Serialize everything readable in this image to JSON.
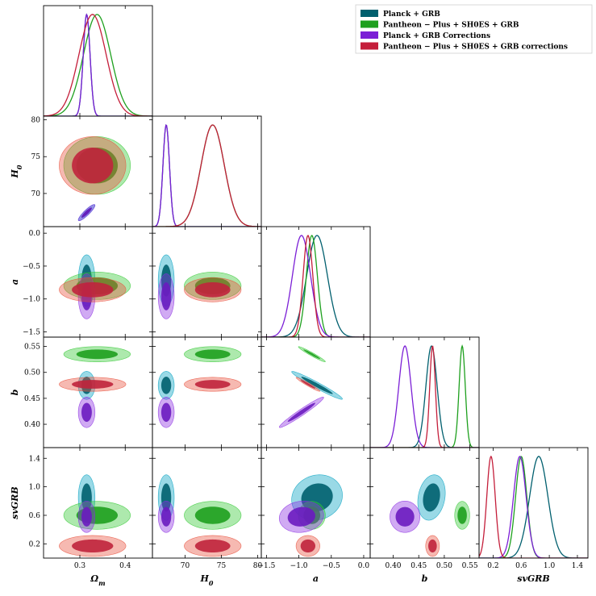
{
  "chart_data": {
    "type": "triangle-corner-plot",
    "title": "",
    "parameters": [
      {
        "key": "Om",
        "label": "Ωm",
        "range": [
          0.22,
          0.46
        ],
        "ticks": [
          0.3,
          0.4
        ],
        "ticklabels": [
          "0.3",
          "0.4"
        ]
      },
      {
        "key": "H0",
        "label": "H0",
        "range": [
          65.5,
          80.5
        ],
        "ticks": [
          70,
          75,
          80
        ],
        "ticklabels": [
          "70",
          "75",
          "80"
        ]
      },
      {
        "key": "a",
        "label": "a",
        "range": [
          -1.58,
          0.1
        ],
        "ticks": [
          -1.5,
          -1.0,
          -0.5,
          0.0
        ],
        "ticklabels": [
          "−1.5",
          "−1.0",
          "−0.5",
          "0.0"
        ]
      },
      {
        "key": "b",
        "label": "b",
        "range": [
          0.355,
          0.568
        ],
        "ticks": [
          0.4,
          0.45,
          0.5,
          0.55
        ],
        "ticklabels": [
          "0.40",
          "0.45",
          "0.50",
          "0.55"
        ]
      },
      {
        "key": "sv",
        "label": "svGRB",
        "range": [
          0.0,
          1.55
        ],
        "ticks": [
          0.2,
          0.6,
          1.0,
          1.4
        ],
        "ticklabels": [
          "0.2",
          "0.6",
          "1.0",
          "1.4"
        ]
      }
    ],
    "series": [
      {
        "name": "Planck + GRB",
        "fill": "#00a0c0",
        "dark": "#005f6e",
        "line": "#005f6e",
        "mean": [
          0.315,
          67.4,
          -0.72,
          0.475,
          0.85
        ],
        "sd": [
          0.0075,
          0.45,
          0.16,
          0.011,
          0.13
        ],
        "corr": {
          "0-1": 0.9,
          "2-3": -0.97,
          "2-4": 0.1,
          "3-4": 0.2
        }
      },
      {
        "name": "Pantheon − Plus + SH0ES + GRB",
        "fill": "#32c832",
        "dark": "#1ea01e",
        "line": "#1ea01e",
        "mean": [
          0.338,
          73.8,
          -0.8,
          0.535,
          0.6
        ],
        "sd": [
          0.03,
          1.6,
          0.085,
          0.006,
          0.08
        ],
        "corr": {
          "2-3": -0.97
        }
      },
      {
        "name": "Planck + GRB Corrections",
        "fill": "#8a2be2",
        "dark": "#6a1bc0",
        "line": "#7b1fd6",
        "mean": [
          0.315,
          67.4,
          -0.96,
          0.423,
          0.58
        ],
        "sd": [
          0.0075,
          0.45,
          0.14,
          0.012,
          0.09
        ],
        "corr": {
          "0-1": 0.9,
          "2-3": 0.97,
          "2-4": 0.1
        }
      },
      {
        "name": "Pantheon − Plus + SH0ES + GRB corrections",
        "fill": "#e8503c",
        "dark": "#c0243c",
        "line": "#c41e3a",
        "mean": [
          0.328,
          73.8,
          -0.86,
          0.477,
          0.17
        ],
        "sd": [
          0.03,
          1.6,
          0.075,
          0.0055,
          0.06
        ],
        "corr": {
          "2-3": -0.97
        }
      }
    ],
    "legend_position": "top-right"
  },
  "legend": {
    "items": [
      "Planck + GRB",
      "Pantheon − Plus + SH0ES + GRB",
      "Planck + GRB Corrections",
      "Pantheon − Plus + SH0ES + GRB corrections"
    ]
  }
}
